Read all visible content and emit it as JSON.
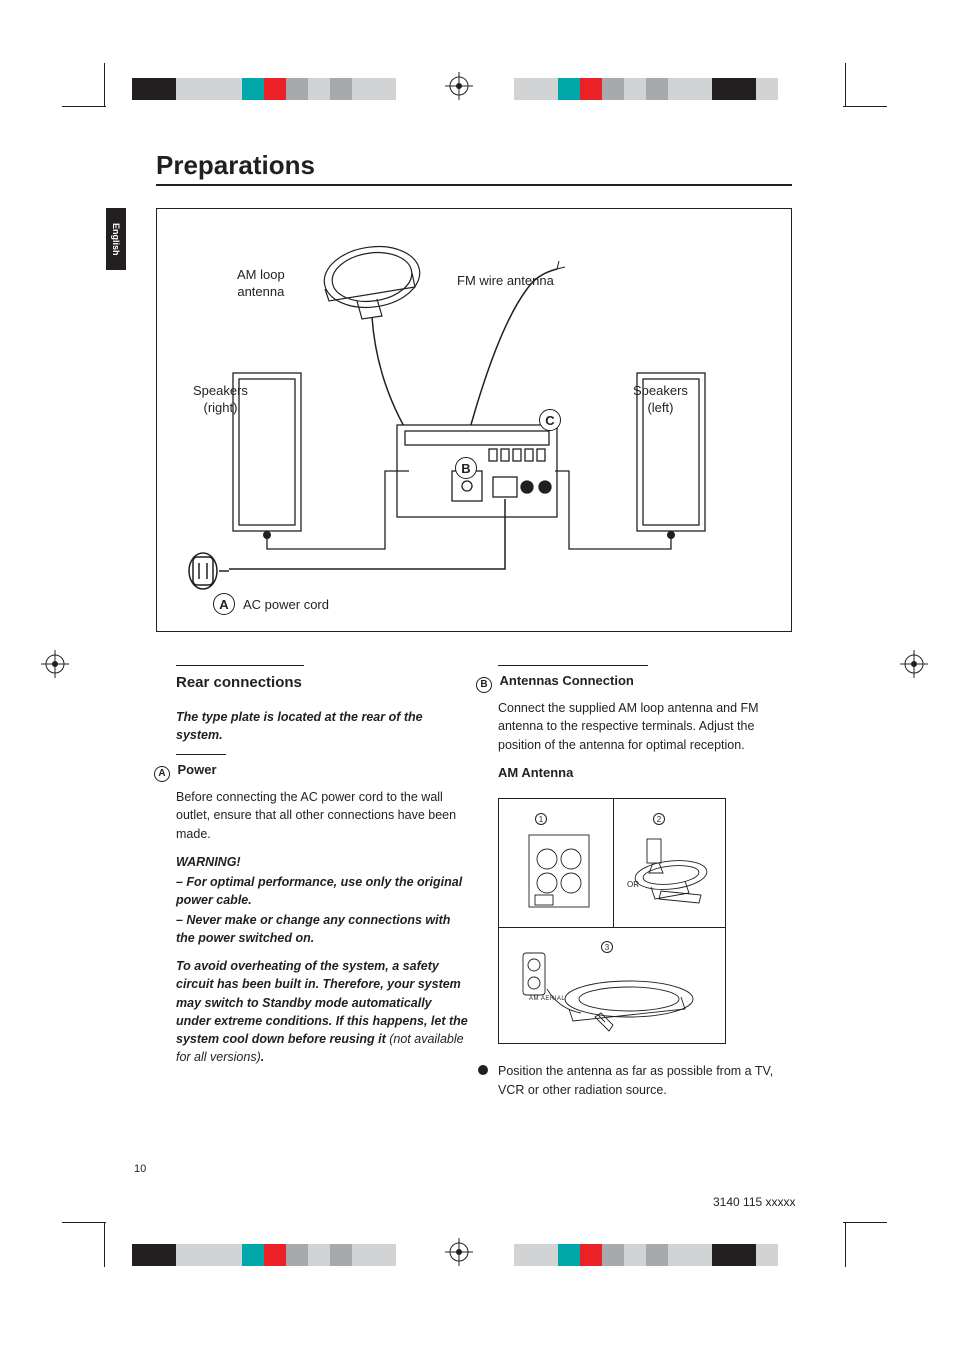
{
  "title": "Preparations",
  "language_tab": "English",
  "page_number": "10",
  "doc_id": "3140 115 xxxxx",
  "registration_colors_left": [
    "#231f20",
    "#231f20",
    "#d2d3d5",
    "#d2d3d5",
    "#d2d3d5",
    "#00a8a9",
    "#ec2027",
    "#a7a9ac",
    "#d2d3d5",
    "#a7a9ac",
    "#d2d3d5",
    "#d2d3d5"
  ],
  "registration_colors_right": [
    "#d2d3d5",
    "#d2d3d5",
    "#00a8a9",
    "#ec2027",
    "#a7a9ac",
    "#d2d3d5",
    "#a7a9ac",
    "#d2d3d5",
    "#d2d3d5",
    "#231f20",
    "#231f20",
    "#d2d3d5"
  ],
  "diagram": {
    "am_loop": "AM loop\nantenna",
    "fm_wire": "FM wire antenna",
    "speakers_right": "Speakers\n(right)",
    "speakers_left": "Speakers\n(left)",
    "ac_cord": "AC power cord",
    "A": "A",
    "B": "B",
    "C": "C"
  },
  "left_col": {
    "section": "Rear connections",
    "type_plate": "The type plate is located at the rear of the system.",
    "A_label": "A",
    "power_h": "Power",
    "power_body": "Before connecting the AC power cord to the wall outlet, ensure that all other connections have been made.",
    "warning_h": "WARNING!",
    "warn_1": "–  For optimal performance, use only the original power cable.",
    "warn_2": "–  Never make or change any connections with the power switched on.",
    "overheat": "To avoid overheating of the system, a safety circuit has been built in.  Therefore, your system may switch to Standby mode automatically under extreme conditions.  If this happens, let the system cool down before reusing it ",
    "overheat_note": "(not available for all versions)",
    "overheat_end": "."
  },
  "right_col": {
    "B_label": "B",
    "antennas_h": "Antennas Connection",
    "antennas_body": "Connect the supplied AM loop antenna and FM antenna to the respective terminals. Adjust the position of the antenna for optimal reception.",
    "am_h": "AM Antenna",
    "or": "OR",
    "am_aerial": "AM  AERIAL",
    "step1": "1",
    "step2": "2",
    "step3": "3",
    "bullet": "Position the antenna as far as possible from a TV, VCR or other radiation source."
  }
}
